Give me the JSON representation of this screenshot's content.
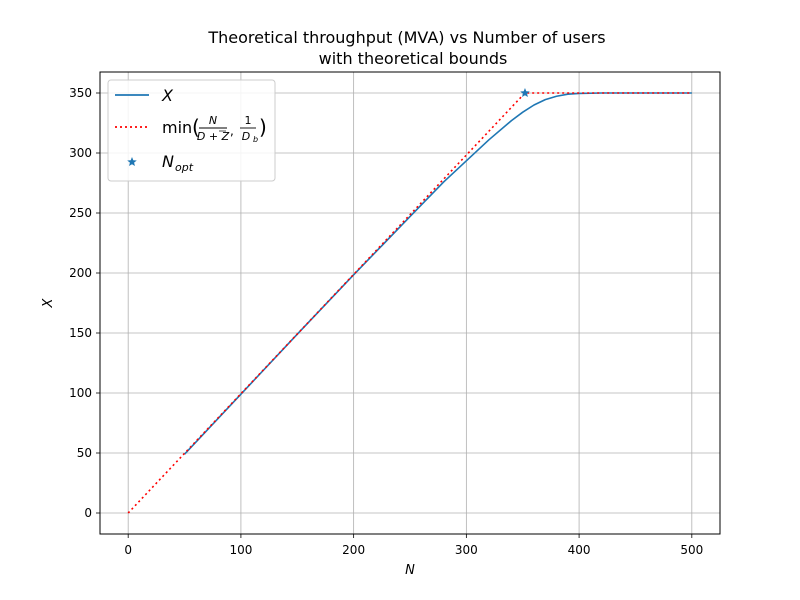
{
  "chart_data": {
    "type": "line",
    "title": "Theoretical throughput (MVA) vs Number of users\nwith theoretical bounds",
    "xlabel": "N",
    "ylabel": "X",
    "xlim": [
      -25,
      525
    ],
    "ylim": [
      -17.5,
      367.5
    ],
    "xticks": [
      0,
      100,
      200,
      300,
      400,
      500
    ],
    "yticks": [
      0,
      50,
      100,
      150,
      200,
      250,
      300,
      350
    ],
    "grid": true,
    "legend_position": "top-left",
    "series": [
      {
        "name": "X",
        "style": "solid",
        "color": "#1f77b4",
        "x": [
          50,
          100,
          150,
          200,
          250,
          280,
          300,
          320,
          340,
          350,
          360,
          370,
          380,
          390,
          400,
          420,
          450,
          500
        ],
        "y": [
          49,
          99,
          149,
          198.5,
          247,
          276,
          293.5,
          311,
          327,
          334,
          340,
          344.5,
          347.3,
          349,
          349.6,
          350,
          350,
          350
        ]
      },
      {
        "name": "min(N/(D+Z), 1/Db)",
        "style": "dotted",
        "color": "#ff0000",
        "x": [
          0,
          352,
          500
        ],
        "y": [
          0,
          350,
          350
        ]
      },
      {
        "name": "N_opt",
        "style": "marker-star",
        "color": "#1f77b4",
        "x": [
          352
        ],
        "y": [
          350
        ]
      }
    ]
  }
}
